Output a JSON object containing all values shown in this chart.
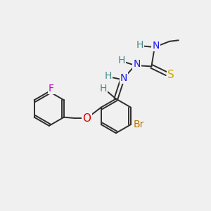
{
  "bg_color": "#f0f0f0",
  "bond_color": "#2d2d2d",
  "bond_lw": 1.4,
  "atom_colors": {
    "F": "#cc00cc",
    "O": "#dd0000",
    "N": "#4a8888",
    "N2": "#1a1aee",
    "S": "#ccaa00",
    "Br": "#bb7700",
    "H": "#4a8888",
    "C_methyl": "#000077",
    "CH3": "#000077"
  },
  "font_size": 10,
  "fig_size": [
    3.0,
    3.0
  ],
  "dpi": 100
}
